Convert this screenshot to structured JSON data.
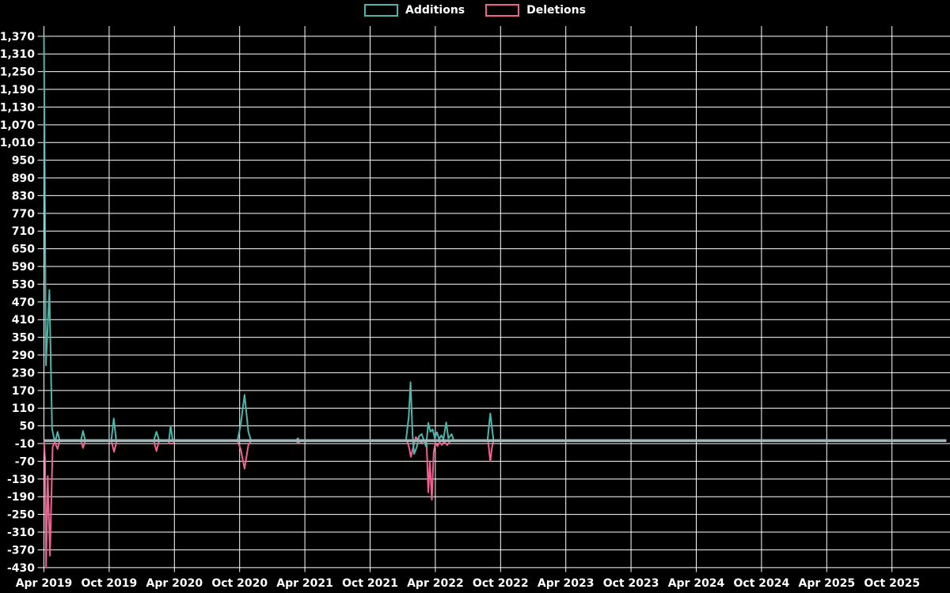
{
  "chart_data": {
    "type": "line",
    "title": "",
    "background": "#000000",
    "grid_color": "#ffffff",
    "text_color": "#ffffff",
    "zero_line_color": "#a4b6b8",
    "legend_position": "top-center",
    "grid": true,
    "x_axis": {
      "months_per_tick": 6,
      "tick_labels": [
        "Apr 2019",
        "Oct 2019",
        "Apr 2020",
        "Oct 2020",
        "Apr 2021",
        "Oct 2021",
        "Apr 2022",
        "Oct 2022",
        "Apr 2023",
        "Oct 2023",
        "Apr 2024",
        "Oct 2024",
        "Apr 2025",
        "Oct 2025"
      ]
    },
    "y_axis": {
      "min": -430,
      "max": 1370,
      "step": 60,
      "tick_labels": [
        "1,370",
        "1,310",
        "1,250",
        "1,190",
        "1,130",
        "1,070",
        "1,010",
        "950",
        "890",
        "830",
        "770",
        "710",
        "650",
        "590",
        "530",
        "470",
        "410",
        "350",
        "290",
        "230",
        "170",
        "110",
        "50",
        "-10",
        "-70",
        "-130",
        "-190",
        "-250",
        "-310",
        "-370",
        "-430"
      ]
    },
    "series": [
      {
        "name": "Additions",
        "color": "#4db6ac",
        "points_format": "[months_since_Apr_2019, value]",
        "points": [
          [
            0,
            1370
          ],
          [
            0.18,
            255
          ],
          [
            0.5,
            510
          ],
          [
            0.75,
            40
          ],
          [
            0.95,
            5
          ],
          [
            1.1,
            5
          ],
          [
            1.25,
            30
          ],
          [
            1.45,
            0
          ],
          [
            3.4,
            0
          ],
          [
            3.6,
            33
          ],
          [
            3.8,
            0
          ],
          [
            6.2,
            0
          ],
          [
            6.42,
            75
          ],
          [
            6.65,
            0
          ],
          [
            10.1,
            0
          ],
          [
            10.35,
            30
          ],
          [
            10.6,
            0
          ],
          [
            11.5,
            0
          ],
          [
            11.65,
            50
          ],
          [
            11.85,
            0
          ],
          [
            17.8,
            0
          ],
          [
            18.1,
            55
          ],
          [
            18.45,
            155
          ],
          [
            18.8,
            30
          ],
          [
            19.05,
            0
          ],
          [
            23.2,
            0
          ],
          [
            23.35,
            8
          ],
          [
            23.5,
            0
          ],
          [
            33.3,
            0
          ],
          [
            33.55,
            80
          ],
          [
            33.72,
            198
          ],
          [
            33.9,
            20
          ],
          [
            34.05,
            -45
          ],
          [
            34.3,
            -20
          ],
          [
            34.5,
            15
          ],
          [
            34.75,
            22
          ],
          [
            35.0,
            -5
          ],
          [
            35.15,
            -20
          ],
          [
            35.35,
            60
          ],
          [
            35.55,
            30
          ],
          [
            35.75,
            38
          ],
          [
            35.95,
            8
          ],
          [
            36.15,
            28
          ],
          [
            36.35,
            5
          ],
          [
            36.55,
            18
          ],
          [
            36.75,
            5
          ],
          [
            37.0,
            62
          ],
          [
            37.2,
            8
          ],
          [
            37.5,
            22
          ],
          [
            37.7,
            0
          ],
          [
            40.8,
            0
          ],
          [
            41.05,
            92
          ],
          [
            41.35,
            0
          ],
          [
            83,
            0
          ]
        ]
      },
      {
        "name": "Deletions",
        "color": "#f06292",
        "points_format": "[months_since_Apr_2019, value]",
        "points": [
          [
            0,
            0
          ],
          [
            0.1,
            -60
          ],
          [
            0.2,
            -430
          ],
          [
            0.35,
            -120
          ],
          [
            0.55,
            -390
          ],
          [
            0.8,
            -20
          ],
          [
            1.0,
            -5
          ],
          [
            1.25,
            -28
          ],
          [
            1.45,
            0
          ],
          [
            3.4,
            0
          ],
          [
            3.6,
            -25
          ],
          [
            3.8,
            0
          ],
          [
            6.2,
            0
          ],
          [
            6.45,
            -38
          ],
          [
            6.7,
            0
          ],
          [
            10.1,
            0
          ],
          [
            10.35,
            -35
          ],
          [
            10.6,
            0
          ],
          [
            11.45,
            0
          ],
          [
            11.55,
            -10
          ],
          [
            11.9,
            -10
          ],
          [
            12.0,
            0
          ],
          [
            17.8,
            0
          ],
          [
            18.1,
            -30
          ],
          [
            18.45,
            -95
          ],
          [
            18.8,
            -15
          ],
          [
            19.05,
            0
          ],
          [
            23.2,
            0
          ],
          [
            23.4,
            -10
          ],
          [
            23.55,
            0
          ],
          [
            33.4,
            0
          ],
          [
            33.6,
            -25
          ],
          [
            33.75,
            -55
          ],
          [
            33.95,
            -25
          ],
          [
            34.2,
            12
          ],
          [
            34.45,
            3
          ],
          [
            34.7,
            -8
          ],
          [
            34.95,
            0
          ],
          [
            35.2,
            -12
          ],
          [
            35.35,
            -175
          ],
          [
            35.5,
            -70
          ],
          [
            35.68,
            -200
          ],
          [
            35.85,
            -40
          ],
          [
            36.0,
            -8
          ],
          [
            36.2,
            -18
          ],
          [
            36.4,
            -5
          ],
          [
            36.6,
            -15
          ],
          [
            36.8,
            -3
          ],
          [
            37.1,
            -15
          ],
          [
            37.4,
            0
          ],
          [
            40.85,
            0
          ],
          [
            41.05,
            -70
          ],
          [
            41.2,
            -25
          ],
          [
            41.35,
            0
          ],
          [
            83,
            0
          ]
        ]
      }
    ]
  }
}
